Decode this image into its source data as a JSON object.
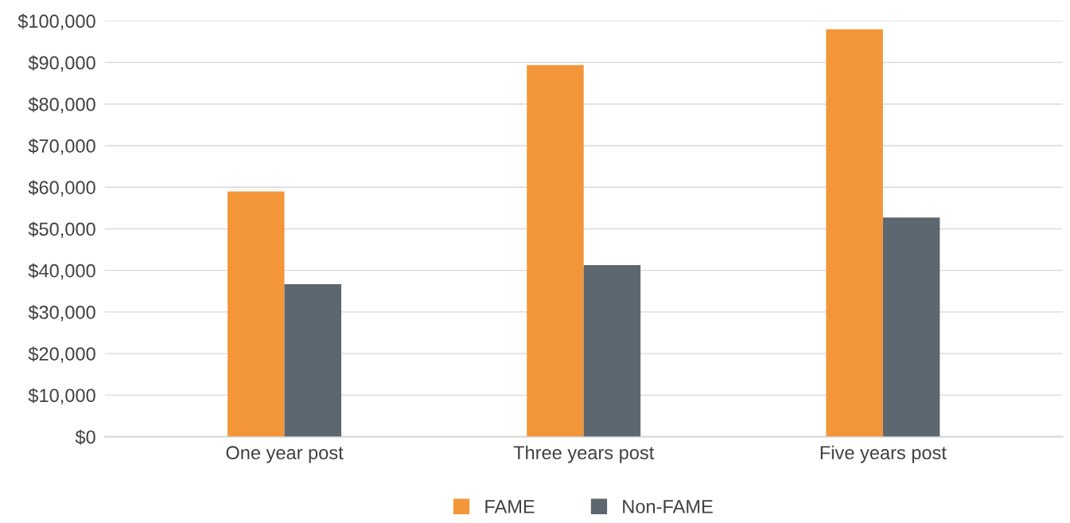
{
  "chart_data": {
    "type": "bar",
    "categories": [
      "One year post",
      "Three years post",
      "Five years post"
    ],
    "series": [
      {
        "name": "FAME",
        "color": "#f39639",
        "values": [
          59000,
          89400,
          98000
        ]
      },
      {
        "name": "Non-FAME",
        "color": "#5d6770",
        "values": [
          36700,
          41300,
          52700
        ]
      }
    ],
    "ylim": [
      0,
      100000
    ],
    "yticks": [
      {
        "value": 0,
        "label": "$0"
      },
      {
        "value": 10000,
        "label": "$10,000"
      },
      {
        "value": 20000,
        "label": "$20,000"
      },
      {
        "value": 30000,
        "label": "$30,000"
      },
      {
        "value": 40000,
        "label": "$40,000"
      },
      {
        "value": 50000,
        "label": "$50,000"
      },
      {
        "value": 60000,
        "label": "$60,000"
      },
      {
        "value": 70000,
        "label": "$70,000"
      },
      {
        "value": 80000,
        "label": "$80,000"
      },
      {
        "value": 90000,
        "label": "$90,000"
      },
      {
        "value": 100000,
        "label": "$100,000"
      }
    ],
    "grid": "y",
    "legend": "bottom"
  }
}
